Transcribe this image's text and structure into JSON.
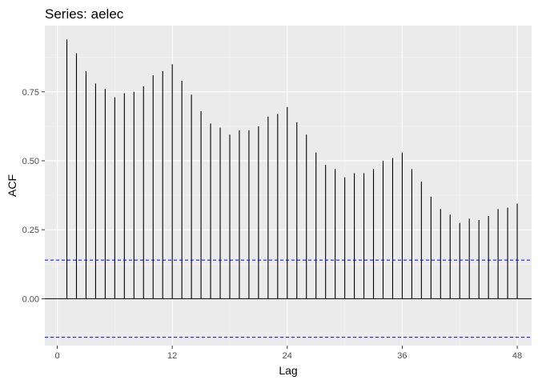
{
  "chart_data": {
    "type": "bar",
    "title": "Series: aelec",
    "xlabel": "Lag",
    "ylabel": "ACF",
    "xlim": [
      -1.3,
      49.5
    ],
    "ylim": [
      -0.17,
      0.99
    ],
    "x_ticks": [
      0,
      12,
      24,
      36,
      48
    ],
    "x_tick_labels": [
      "0",
      "12",
      "24",
      "36",
      "48"
    ],
    "y_ticks": [
      0.0,
      0.25,
      0.5,
      0.75
    ],
    "y_tick_labels": [
      "0.00",
      "0.25",
      "0.50",
      "0.75"
    ],
    "grid": true,
    "confidence_bound": 0.14,
    "lags": [
      1,
      2,
      3,
      4,
      5,
      6,
      7,
      8,
      9,
      10,
      11,
      12,
      13,
      14,
      15,
      16,
      17,
      18,
      19,
      20,
      21,
      22,
      23,
      24,
      25,
      26,
      27,
      28,
      29,
      30,
      31,
      32,
      33,
      34,
      35,
      36,
      37,
      38,
      39,
      40,
      41,
      42,
      43,
      44,
      45,
      46,
      47,
      48
    ],
    "values": [
      0.94,
      0.89,
      0.825,
      0.78,
      0.76,
      0.73,
      0.745,
      0.75,
      0.77,
      0.81,
      0.825,
      0.85,
      0.79,
      0.74,
      0.68,
      0.635,
      0.62,
      0.595,
      0.61,
      0.61,
      0.625,
      0.66,
      0.67,
      0.695,
      0.64,
      0.595,
      0.53,
      0.485,
      0.47,
      0.44,
      0.455,
      0.455,
      0.47,
      0.5,
      0.51,
      0.53,
      0.47,
      0.425,
      0.37,
      0.325,
      0.305,
      0.275,
      0.29,
      0.285,
      0.3,
      0.325,
      0.33,
      0.345
    ]
  },
  "colors": {
    "panel_background": "#ebebeb",
    "grid_major": "#ffffff",
    "grid_minor": "#f5f5f5",
    "bar": "#000000",
    "zero_line": "#000000",
    "confidence_line": "#0000ff",
    "tick_text": "#4d4d4d",
    "tick_mark": "#333333"
  }
}
